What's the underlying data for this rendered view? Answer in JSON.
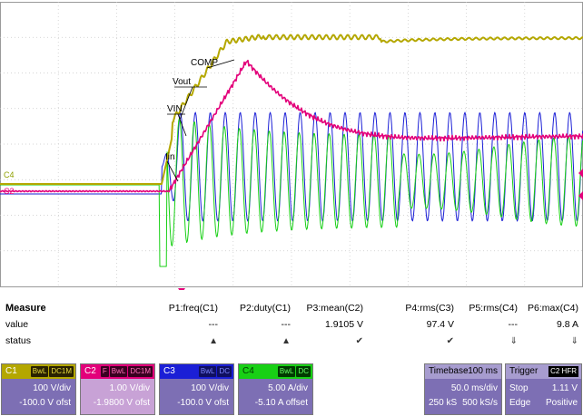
{
  "scope": {
    "trace_labels": {
      "comp": "COMP",
      "vout": "Vout",
      "vin": "VIN",
      "iin": "Iin"
    },
    "channel_markers": {
      "c4": "C4",
      "c2": "C2"
    },
    "colors": {
      "c1": "#b4a700",
      "c2": "#e3007a",
      "c3": "#1b1fd6",
      "c4": "#18d015",
      "grid": "#c8c8c8"
    }
  },
  "measure": {
    "title": "Measure",
    "row_value": "value",
    "row_status": "status",
    "params": [
      {
        "name": "P1:freq(C1)",
        "value": "---",
        "status": "warning-icon"
      },
      {
        "name": "P2:duty(C1)",
        "value": "---",
        "status": "warning-icon"
      },
      {
        "name": "P3:mean(C2)",
        "value": "1.9105 V",
        "status": "check-icon"
      },
      {
        "name": "P4:rms(C3)",
        "value": "97.4 V",
        "status": "check-icon"
      },
      {
        "name": "P5:rms(C4)",
        "value": "---",
        "status": "down-arrow-icon"
      },
      {
        "name": "P6:max(C4)",
        "value": "9.8 A",
        "status": "down-arrow-icon"
      }
    ]
  },
  "channels": {
    "c1": {
      "name": "C1",
      "badges": [
        "BwL",
        "DC1M"
      ],
      "vdiv": "100 V/div",
      "offset": "-100.0 V ofst"
    },
    "c2": {
      "name": "C2",
      "badges": [
        "F",
        "BwL",
        "DC1M"
      ],
      "vdiv": "1.00 V/div",
      "offset": "-1.9800 V ofst"
    },
    "c3": {
      "name": "C3",
      "badges": [
        "BwL",
        "DC"
      ],
      "vdiv": "100 V/div",
      "offset": "-100.0 V ofst"
    },
    "c4": {
      "name": "C4",
      "badges": [
        "BwL",
        "DC"
      ],
      "vdiv": "5.00 A/div",
      "offset": "-5.10 A offset"
    }
  },
  "timebase": {
    "label": "Timebase",
    "delay": "-100 ms",
    "tdiv": "50.0 ms/div",
    "points": "250 kS",
    "rate": "500 kS/s"
  },
  "trigger": {
    "label": "Trigger",
    "source": "C2 HFR",
    "mode": "Stop",
    "level": "1.11 V",
    "type": "Edge",
    "slope": "Positive"
  }
}
